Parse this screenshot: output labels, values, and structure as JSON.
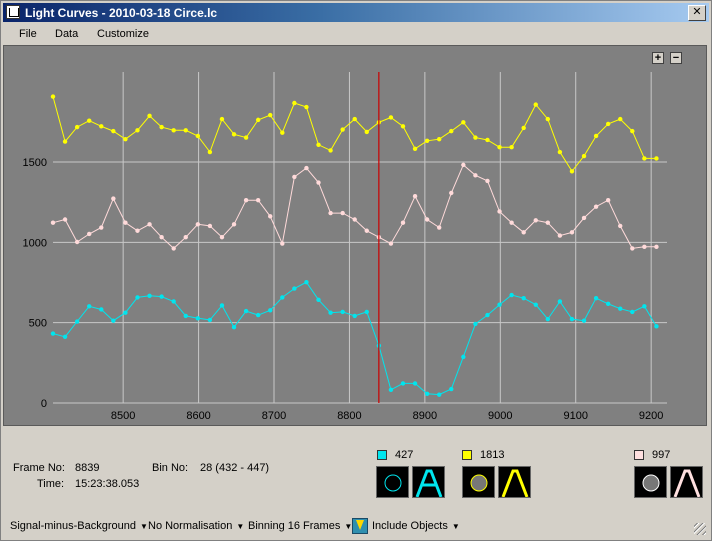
{
  "window": {
    "title": "Light Curves - 2010-03-18 Circe.lc",
    "close_label": "✕"
  },
  "menu": {
    "file": "File",
    "data": "Data",
    "customize": "Customize"
  },
  "zoom": {
    "plus": "+",
    "minus": "−"
  },
  "chart_data": {
    "type": "line",
    "x_ticks": [
      8500,
      8600,
      8700,
      8800,
      8900,
      9000,
      9100,
      9200
    ],
    "y_ticks": [
      0,
      500,
      1000,
      1500
    ],
    "xlim": [
      8407,
      9221
    ],
    "ylim": [
      0,
      2060
    ],
    "grid": true,
    "cursor_x": 8839,
    "colors": {
      "yellow": "#ffff00",
      "pink": "#ffdada",
      "cyan": "#00e5ee",
      "cursor": "#cc0000",
      "grid": "#c8c8c8"
    },
    "series": [
      {
        "color": "yellow",
        "x": [
          8407,
          8423,
          8439,
          8455,
          8471,
          8487,
          8503,
          8519,
          8535,
          8551,
          8567,
          8583,
          8599,
          8615,
          8631,
          8647,
          8663,
          8679,
          8695,
          8711,
          8727,
          8743,
          8759,
          8775,
          8791,
          8807,
          8823,
          8839,
          8855,
          8871,
          8887,
          8903,
          8919,
          8935,
          8951,
          8967,
          8983,
          8999,
          9015,
          9031,
          9047,
          9063,
          9079,
          9095,
          9111,
          9127,
          9143,
          9159,
          9175,
          9191,
          9207
        ],
        "y": [
          1907,
          1627,
          1717,
          1757,
          1722,
          1692,
          1642,
          1697,
          1787,
          1717,
          1697,
          1697,
          1662,
          1562,
          1767,
          1672,
          1652,
          1762,
          1792,
          1682,
          1867,
          1842,
          1607,
          1572,
          1702,
          1767,
          1687,
          1747,
          1777,
          1722,
          1582,
          1632,
          1642,
          1692,
          1747,
          1652,
          1637,
          1592,
          1592,
          1712,
          1857,
          1767,
          1562,
          1442,
          1537,
          1662,
          1737,
          1767,
          1692,
          1522,
          1522
        ]
      },
      {
        "color": "pink",
        "x": [
          8407,
          8423,
          8439,
          8455,
          8471,
          8487,
          8503,
          8519,
          8535,
          8551,
          8567,
          8583,
          8599,
          8615,
          8631,
          8647,
          8663,
          8679,
          8695,
          8711,
          8727,
          8743,
          8759,
          8775,
          8791,
          8807,
          8823,
          8839,
          8855,
          8871,
          8887,
          8903,
          8919,
          8935,
          8951,
          8967,
          8983,
          8999,
          9015,
          9031,
          9047,
          9063,
          9079,
          9095,
          9111,
          9127,
          9143,
          9159,
          9175,
          9191,
          9207
        ],
        "y": [
          1122,
          1142,
          1002,
          1052,
          1092,
          1272,
          1122,
          1072,
          1112,
          1032,
          962,
          1032,
          1112,
          1102,
          1032,
          1112,
          1262,
          1262,
          1162,
          992,
          1407,
          1462,
          1372,
          1182,
          1182,
          1142,
          1072,
          1032,
          992,
          1122,
          1287,
          1142,
          1092,
          1307,
          1482,
          1417,
          1382,
          1192,
          1122,
          1062,
          1137,
          1122,
          1042,
          1062,
          1152,
          1222,
          1262,
          1102,
          962,
          972,
          972
        ]
      },
      {
        "color": "cyan",
        "x": [
          8407,
          8423,
          8439,
          8455,
          8471,
          8487,
          8503,
          8519,
          8535,
          8551,
          8567,
          8583,
          8599,
          8615,
          8631,
          8647,
          8663,
          8679,
          8695,
          8711,
          8727,
          8743,
          8759,
          8775,
          8791,
          8807,
          8823,
          8839,
          8855,
          8871,
          8887,
          8903,
          8919,
          8935,
          8951,
          8967,
          8983,
          8999,
          9015,
          9031,
          9047,
          9063,
          9079,
          9095,
          9111,
          9127,
          9143,
          9159,
          9175,
          9191,
          9207
        ],
        "y": [
          432,
          412,
          507,
          602,
          582,
          512,
          562,
          657,
          667,
          662,
          632,
          542,
          527,
          517,
          607,
          472,
          572,
          547,
          577,
          657,
          712,
          752,
          642,
          562,
          567,
          542,
          567,
          357,
          82,
          122,
          122,
          57,
          52,
          87,
          287,
          492,
          547,
          612,
          672,
          652,
          612,
          522,
          632,
          522,
          512,
          652,
          617,
          587,
          567,
          602,
          477
        ]
      }
    ]
  },
  "info": {
    "frame_label": "Frame No:",
    "frame_value": "8839",
    "time_label": "Time:",
    "time_value": "15:23:38.053",
    "bin_label": "Bin No:",
    "bin_value": "28 (432 - 447)"
  },
  "legend": [
    {
      "value": "427",
      "color": "#00e5ee"
    },
    {
      "value": "1813",
      "color": "#ffff00"
    },
    {
      "value": "997",
      "color": "#ffe0e0"
    }
  ],
  "status": {
    "signal": "Signal-minus-Background",
    "normalisation": "No Normalisation",
    "binning": "Binning 16 Frames",
    "include": "Include Objects",
    "arrow": "▼"
  }
}
